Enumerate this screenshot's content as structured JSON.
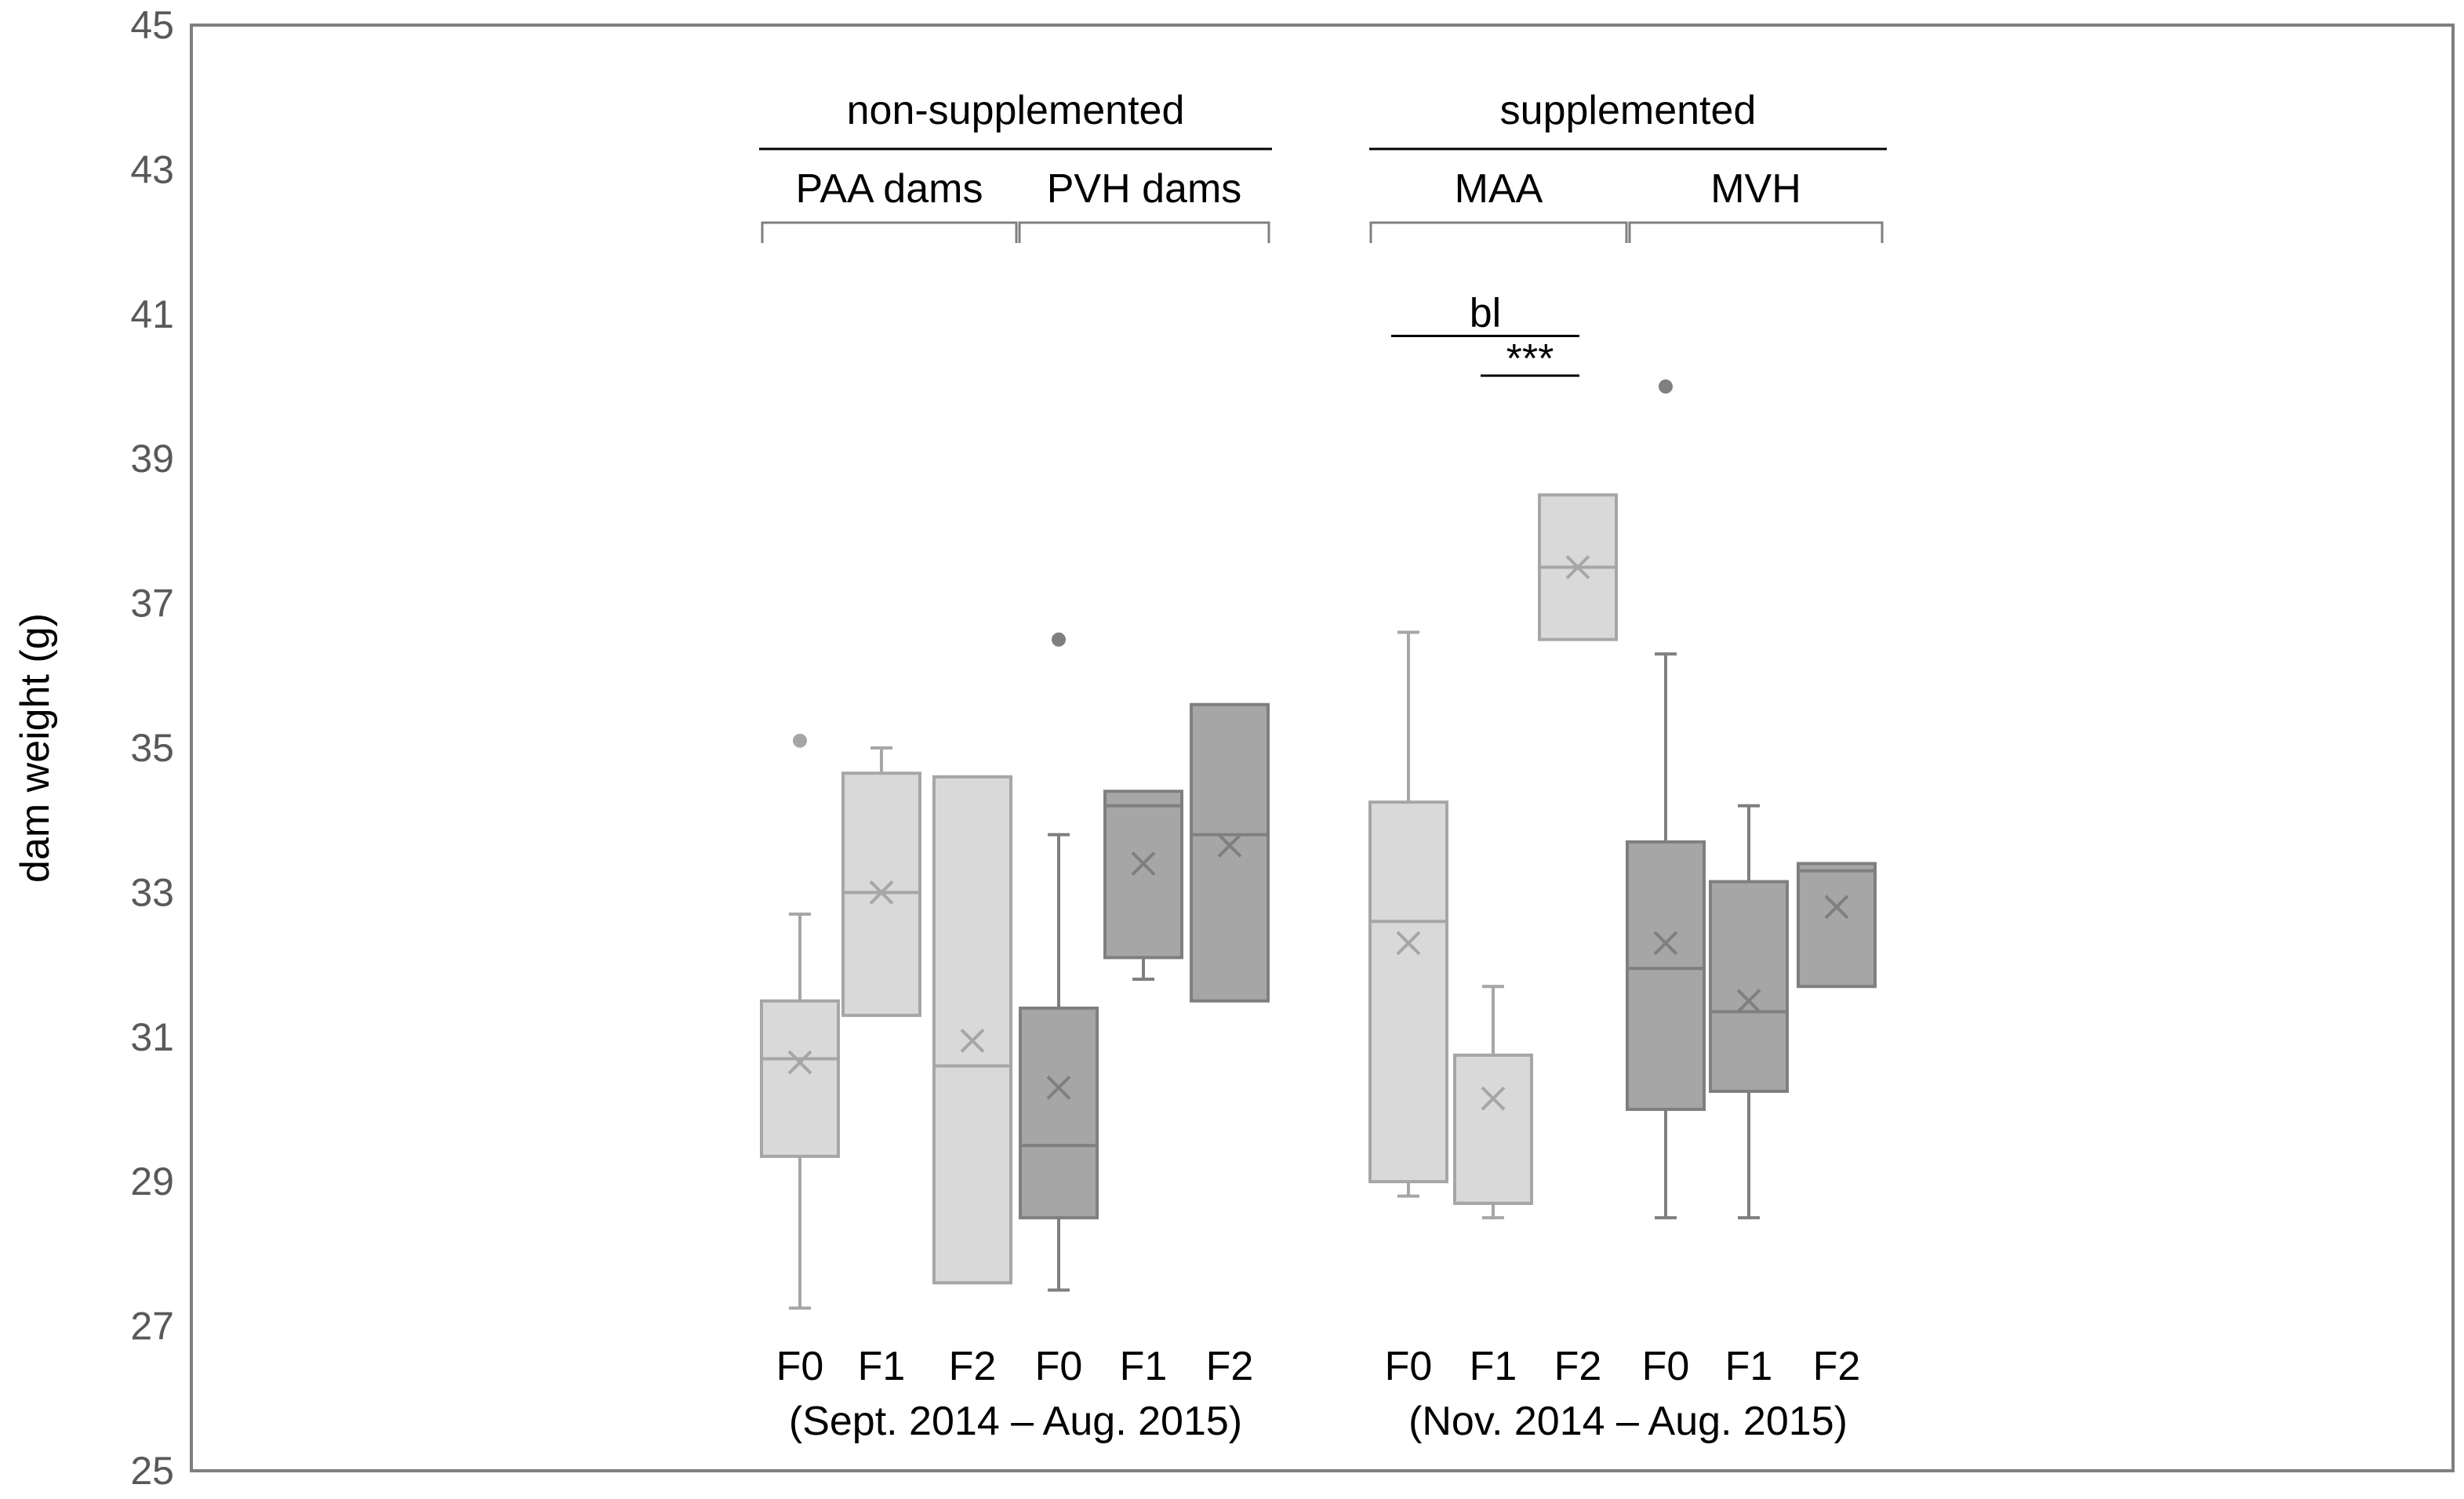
{
  "chart_data": {
    "type": "box",
    "title": "",
    "xlabel": "",
    "ylabel": "dam weight (g)",
    "ylim": [
      25,
      45
    ],
    "yticks": [
      25,
      27,
      29,
      31,
      33,
      35,
      37,
      39,
      41,
      43,
      45
    ],
    "colors": {
      "light_fill": "#d9d9d9",
      "light_stroke": "#a6a6a6",
      "dark_fill": "#a6a6a6",
      "dark_stroke": "#7f7f7f",
      "axis": "#7f7f7f",
      "text": "#000000",
      "tick_text": "#595959"
    },
    "groups": [
      {
        "label": "non-supplemented",
        "period": "(Sept. 2014 – Aug. 2015)",
        "subgroups": [
          {
            "label": "PAA dams",
            "shade": "light",
            "boxes": [
              {
                "label": "F0",
                "q1": 29.35,
                "median": 30.7,
                "q3": 31.5,
                "whisker_low": 27.25,
                "whisker_high": 32.7,
                "mean": 30.65,
                "outliers": [
                  35.1
                ]
              },
              {
                "label": "F1",
                "q1": 31.3,
                "median": 33.0,
                "q3": 34.65,
                "whisker_low": 31.3,
                "whisker_high": 35.0,
                "mean": 33.0,
                "outliers": []
              },
              {
                "label": "F2",
                "q1": 27.6,
                "median": 30.6,
                "q3": 34.6,
                "whisker_low": 27.6,
                "whisker_high": 34.6,
                "mean": 30.95,
                "outliers": []
              }
            ]
          },
          {
            "label": "PVH dams",
            "shade": "dark",
            "boxes": [
              {
                "label": "F0",
                "q1": 28.5,
                "median": 29.5,
                "q3": 31.4,
                "whisker_low": 27.5,
                "whisker_high": 33.8,
                "mean": 30.3,
                "outliers": [
                  36.5
                ]
              },
              {
                "label": "F1",
                "q1": 32.1,
                "median": 34.2,
                "q3": 34.4,
                "whisker_low": 31.8,
                "whisker_high": 34.4,
                "mean": 33.4,
                "outliers": []
              },
              {
                "label": "F2",
                "q1": 31.5,
                "median": 33.8,
                "q3": 35.6,
                "whisker_low": 31.5,
                "whisker_high": 35.6,
                "mean": 33.65,
                "outliers": []
              }
            ]
          }
        ]
      },
      {
        "label": "supplemented",
        "period": "(Nov. 2014 – Aug. 2015)",
        "subgroups": [
          {
            "label": "MAA",
            "shade": "light",
            "boxes": [
              {
                "label": "F0",
                "q1": 29.0,
                "median": 32.6,
                "q3": 34.25,
                "whisker_low": 28.8,
                "whisker_high": 36.6,
                "mean": 32.3,
                "outliers": []
              },
              {
                "label": "F1",
                "q1": 28.7,
                "median": 28.7,
                "q3": 30.75,
                "whisker_low": 28.5,
                "whisker_high": 31.7,
                "mean": 30.15,
                "outliers": []
              },
              {
                "label": "F2",
                "q1": 36.5,
                "median": 37.5,
                "q3": 38.5,
                "whisker_low": 36.5,
                "whisker_high": 38.5,
                "mean": 37.5,
                "outliers": []
              }
            ]
          },
          {
            "label": "MVH",
            "shade": "dark",
            "boxes": [
              {
                "label": "F0",
                "q1": 30.0,
                "median": 31.95,
                "q3": 33.7,
                "whisker_low": 28.5,
                "whisker_high": 36.3,
                "mean": 32.3,
                "outliers": [
                  40.0
                ]
              },
              {
                "label": "F1",
                "q1": 30.25,
                "median": 31.35,
                "q3": 33.15,
                "whisker_low": 28.5,
                "whisker_high": 34.2,
                "mean": 31.5,
                "outliers": []
              },
              {
                "label": "F2",
                "q1": 31.7,
                "median": 33.3,
                "q3": 33.4,
                "whisker_low": 31.7,
                "whisker_high": 33.4,
                "mean": 32.8,
                "outliers": []
              }
            ]
          }
        ]
      }
    ],
    "annotations": [
      {
        "text": "bl",
        "from": "MAA F0",
        "to": "MAA F2",
        "y": 40.7
      },
      {
        "text": "***",
        "from": "MAA F1",
        "to": "MAA F2",
        "y": 40.15
      }
    ]
  }
}
